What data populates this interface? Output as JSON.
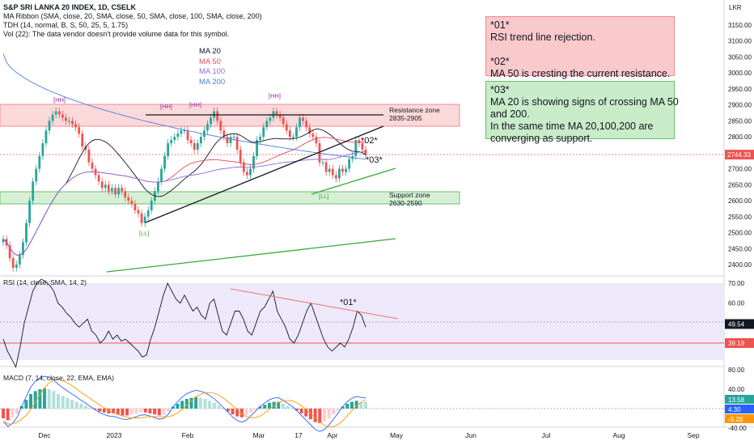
{
  "header": {
    "symbol_line": "S&P SRI LANKA 20 INDEX, 1D, CSELK",
    "ribbon_line": "MA Ribbon (SMA, close, 20, SMA, close, 50, SMA, close, 100, SMA, close, 200)",
    "tdh_line": "TDH (14, normal, B, S, 50, 25, 5, 1.75)",
    "vol_line": "Vol (22): The data vendor doesn't provide volume data for this symbol."
  },
  "ma_legend": [
    {
      "label": "MA 20",
      "color": "#131722"
    },
    {
      "label": "MA 50",
      "color": "#e04e5a"
    },
    {
      "label": "MA 100",
      "color": "#8c6be0"
    },
    {
      "label": "MA 200",
      "color": "#4a7fe0"
    }
  ],
  "notes": {
    "red": [
      "*01*",
      "RSI trend line rejection.",
      "",
      "*02*",
      "MA 50 is cresting the current resistance."
    ],
    "green": [
      "*03*",
      "MA 20 is showing signs of crossing MA 50",
      "and 200.",
      "In the same time MA 20,100,200 are",
      "converging as support."
    ]
  },
  "zones": {
    "resistance": {
      "title": "Resistance zone",
      "range": "2835-2905"
    },
    "support": {
      "title": "Support zone",
      "range": "2630-2590"
    }
  },
  "annotations": {
    "a01": "*01*",
    "a02": "*02*",
    "a03": "*03*",
    "hh": "[HH]",
    "ll": "[LL]"
  },
  "panes": {
    "rsi_label": "RSI (14, close, SMA, 14, 2)",
    "macd_label": "MACD (7, 14, close, 22, EMA, EMA)"
  },
  "colors": {
    "up": "#26a69a",
    "down": "#ef5350",
    "ma20": "#131722",
    "ma50": "#e04e5a",
    "ma100": "#8c6be0",
    "ma200": "#4a7fe0",
    "trend_green": "#3aa83a",
    "resistance_fill": "#fbd9da",
    "support_fill": "#d6f0d6"
  },
  "chart_data": [
    {
      "type": "candlestick",
      "title": "S&P SRI LANKA 20 INDEX, 1D, CSELK",
      "currency": "LKR",
      "current_price": "2744.33",
      "ylim": [
        2370,
        3190
      ],
      "y_ticks": [
        "3150.00",
        "3100.00",
        "3050.00",
        "3000.00",
        "2950.00",
        "2900.00",
        "2850.00",
        "2800.00",
        "2750.00",
        "2700.00",
        "2650.00",
        "2600.00",
        "2550.00",
        "2500.00",
        "2450.00",
        "2400.00"
      ],
      "x_ticks": [
        "Dec",
        "2023",
        "Feb",
        "Mar",
        "17",
        "Apr",
        "May",
        "Jun",
        "Jul",
        "Aug",
        "Sep"
      ],
      "close": [
        2480,
        2460,
        2420,
        2390,
        2400,
        2430,
        2470,
        2530,
        2600,
        2660,
        2700,
        2740,
        2780,
        2820,
        2850,
        2870,
        2880,
        2870,
        2860,
        2850,
        2850,
        2840,
        2830,
        2810,
        2770,
        2760,
        2720,
        2700,
        2680,
        2660,
        2640,
        2650,
        2630,
        2640,
        2620,
        2640,
        2630,
        2610,
        2600,
        2590,
        2570,
        2560,
        2530,
        2550,
        2570,
        2600,
        2630,
        2660,
        2700,
        2740,
        2780,
        2790,
        2800,
        2810,
        2820,
        2820,
        2790,
        2780,
        2760,
        2780,
        2800,
        2820,
        2840,
        2860,
        2880,
        2850,
        2820,
        2800,
        2780,
        2800,
        2800,
        2760,
        2720,
        2690,
        2680,
        2700,
        2740,
        2790,
        2800,
        2830,
        2850,
        2860,
        2880,
        2870,
        2860,
        2840,
        2820,
        2800,
        2800,
        2830,
        2860,
        2850,
        2830,
        2810,
        2800,
        2780,
        2720,
        2720,
        2690,
        2700,
        2680,
        2670,
        2700,
        2690,
        2700,
        2730,
        2740,
        2790,
        2780,
        2760,
        2744
      ],
      "ma_levels": {
        "MA 20": 2790,
        "MA 50": 2780,
        "MA 100": 2740,
        "MA 200": 2750
      },
      "zones": [
        {
          "name": "Resistance zone",
          "from": 2835,
          "to": 2905
        },
        {
          "name": "Support zone",
          "from": 2590,
          "to": 2630
        }
      ]
    },
    {
      "type": "line",
      "title": "RSI (14, close, SMA, 14, 2)",
      "current": "49.54",
      "signal": "39.19",
      "y_ticks": [
        "70.00",
        "60.00",
        "50.00",
        "40.00"
      ],
      "values": [
        42,
        36,
        32,
        28,
        38,
        50,
        58,
        66,
        70,
        72,
        71,
        69,
        66,
        60,
        58,
        55,
        53,
        50,
        48,
        50,
        52,
        46,
        44,
        40,
        42,
        46,
        42,
        44,
        41,
        42,
        40,
        38,
        36,
        33,
        34,
        42,
        48,
        56,
        64,
        70,
        66,
        62,
        60,
        64,
        60,
        56,
        58,
        54,
        52,
        60,
        62,
        54,
        46,
        44,
        50,
        56,
        56,
        52,
        46,
        44,
        50,
        56,
        58,
        62,
        66,
        56,
        52,
        48,
        42,
        40,
        44,
        50,
        56,
        60,
        54,
        48,
        42,
        38,
        36,
        38,
        40,
        38,
        42,
        48,
        56,
        54,
        48
      ]
    },
    {
      "type": "bar",
      "title": "MACD (7, 14, close, 22, EMA, EMA)",
      "values_shown": [
        "13.58",
        "4.30",
        "-9.28"
      ],
      "y_ticks": [
        "80.00",
        "40.00",
        "0.00",
        "-40.00"
      ],
      "histogram": [
        -20,
        -24,
        -18,
        -10,
        5,
        18,
        30,
        36,
        40,
        42,
        40,
        36,
        30,
        26,
        22,
        18,
        14,
        10,
        6,
        2,
        -2,
        -6,
        -8,
        -10,
        -10,
        -12,
        -14,
        -14,
        -12,
        -10,
        -8,
        -8,
        -10,
        -12,
        -14,
        -12,
        -6,
        4,
        10,
        16,
        20,
        22,
        24,
        22,
        20,
        16,
        12,
        6,
        0,
        -6,
        -12,
        -16,
        -18,
        -14,
        -8,
        -2,
        4,
        8,
        12,
        14,
        14,
        10,
        6,
        2,
        -4,
        -10,
        -16,
        -22,
        -28,
        -30,
        -26,
        -20,
        -12,
        -4,
        4,
        10,
        14,
        16,
        14,
        13.58
      ]
    }
  ]
}
